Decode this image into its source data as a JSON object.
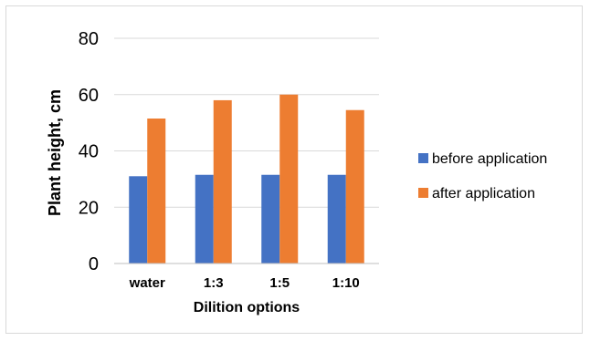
{
  "chart_data": {
    "type": "bar",
    "title": "",
    "xlabel": "Dilition options",
    "ylabel": "Plant height, cm",
    "ylim": [
      0,
      80
    ],
    "yticks": [
      "0",
      "20",
      "40",
      "60",
      "80"
    ],
    "categories": [
      "water",
      "1:3",
      "1:5",
      "1:10"
    ],
    "series": [
      {
        "name": "before application",
        "values": [
          31,
          31.5,
          31.5,
          31.5
        ]
      },
      {
        "name": "after application",
        "values": [
          51.5,
          58,
          60,
          54.5
        ]
      }
    ],
    "colors": {
      "before application": "#4472c4",
      "after application": "#ed7d31",
      "gridline": "#d9d9d9",
      "axis": "#bfbfbf"
    },
    "grid": true,
    "legend": "right"
  }
}
